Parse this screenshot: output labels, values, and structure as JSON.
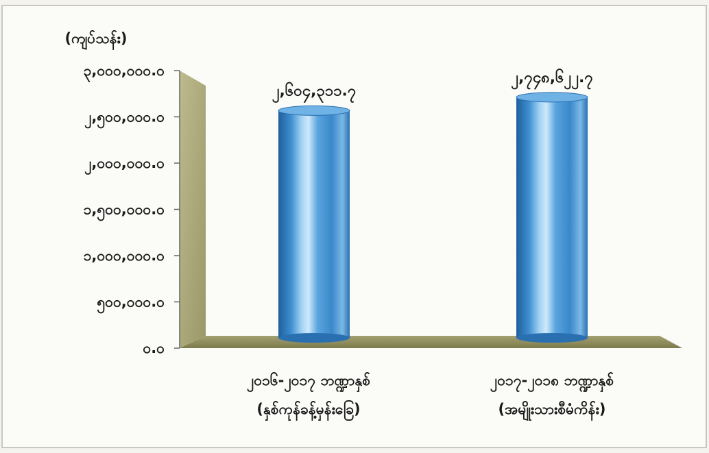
{
  "chart_data": {
    "type": "bar",
    "unit_label": "(ကျပ်သန်း)",
    "ylim": [
      0,
      3000000
    ],
    "yticks": [
      0,
      500000,
      1000000,
      1500000,
      2000000,
      2500000,
      3000000
    ],
    "ytick_labels": [
      "၀.၀",
      "၅၀၀,၀၀၀.၀",
      "၁,၀၀၀,၀၀၀.၀",
      "၁,၅၀၀,၀၀၀.၀",
      "၂,၀၀၀,၀၀၀.၀",
      "၂,၅၀၀,၀၀၀.၀",
      "၃,၀၀၀,၀၀၀.၀"
    ],
    "categories": [
      [
        "၂၀၁၆-၂၀၁၇ ဘဏ္ဍာနှစ်",
        "(နှစ်ကုန်ခန့်မှန်းခြေ)"
      ],
      [
        "၂၀၁၇-၂၀၁၈ ဘဏ္ဍာနှစ်",
        "(အမျိုးသားစီမံကိန်း)"
      ]
    ],
    "values": [
      2604311.7,
      2748622.7
    ],
    "value_labels": [
      "၂,၆၀၄,၃၁၁.၇",
      "၂,၇၄၈,၆၂၂.၇"
    ],
    "grid": false,
    "colors": {
      "bar": "#3f8fd0",
      "bar_highlight": "#cfe9fb",
      "bar_shadow": "#1f5f9e",
      "wall": "#a8a679",
      "floor": "#8f8c5c",
      "axis": "#666666"
    }
  }
}
